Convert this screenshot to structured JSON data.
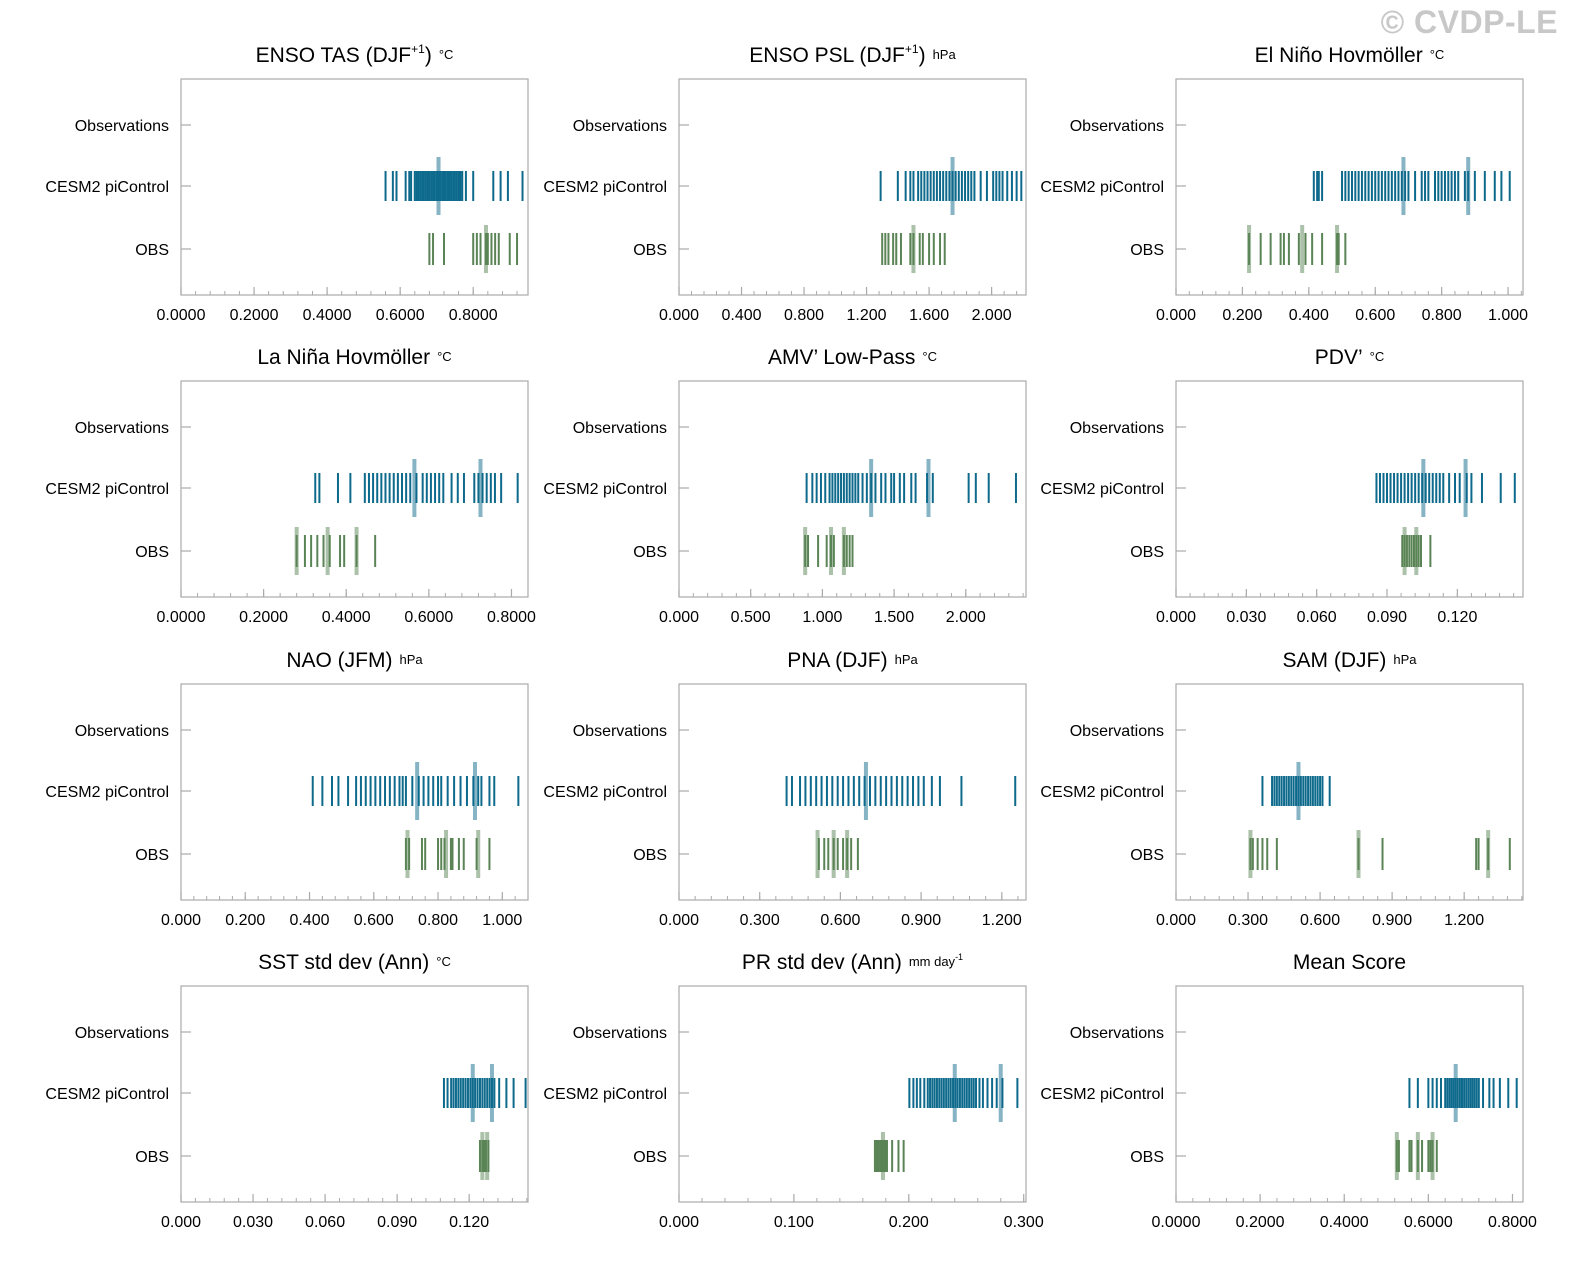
{
  "watermark": "© CVDP-LE",
  "colors": {
    "model": "#0e6a8c",
    "obs": "#5a8455",
    "frame": "#aaaaaa"
  },
  "row_labels": [
    "Observations",
    "CESM2 piControl",
    "OBS"
  ],
  "chart_data": [
    {
      "type": "scatter",
      "title": "ENSO TAS (DJF",
      "title_sup": "+1",
      "title_after": ")",
      "unit": "°C",
      "xlim": [
        0,
        0.95
      ],
      "xticks": [
        "0.0000",
        "0.2000",
        "0.4000",
        "0.6000",
        "0.8000"
      ],
      "xtick_values": [
        0,
        0.2,
        0.4,
        0.6,
        0.8
      ],
      "cesm_values": [
        0.56,
        0.58,
        0.59,
        0.615,
        0.625,
        0.63,
        0.64,
        0.645,
        0.65,
        0.655,
        0.66,
        0.665,
        0.67,
        0.675,
        0.68,
        0.685,
        0.69,
        0.695,
        0.7,
        0.705,
        0.71,
        0.715,
        0.72,
        0.725,
        0.73,
        0.735,
        0.74,
        0.745,
        0.75,
        0.755,
        0.76,
        0.765,
        0.77,
        0.78,
        0.8,
        0.855,
        0.875,
        0.895,
        0.935
      ],
      "cesm_highlight": [
        0.705
      ],
      "obs_values": [
        0.68,
        0.69,
        0.72,
        0.8,
        0.81,
        0.82,
        0.835,
        0.84,
        0.85,
        0.86,
        0.87,
        0.9,
        0.92
      ],
      "obs_highlight": [
        0.835
      ]
    },
    {
      "type": "scatter",
      "title": "ENSO PSL (DJF",
      "title_sup": "+1",
      "title_after": ")",
      "unit": "hPa",
      "xlim": [
        0,
        2.22
      ],
      "xticks": [
        "0.000",
        "0.400",
        "0.800",
        "1.200",
        "1.600",
        "2.000"
      ],
      "xtick_values": [
        0,
        0.4,
        0.8,
        1.2,
        1.6,
        2.0
      ],
      "cesm_values": [
        1.29,
        1.4,
        1.45,
        1.48,
        1.5,
        1.53,
        1.55,
        1.57,
        1.59,
        1.61,
        1.63,
        1.65,
        1.67,
        1.69,
        1.71,
        1.73,
        1.75,
        1.77,
        1.79,
        1.81,
        1.83,
        1.85,
        1.87,
        1.89,
        1.93,
        1.97,
        2.01,
        2.03,
        2.05,
        2.07,
        2.1,
        2.13,
        2.16,
        2.19
      ],
      "cesm_highlight": [
        1.75
      ],
      "obs_values": [
        1.3,
        1.32,
        1.34,
        1.37,
        1.39,
        1.42,
        1.48,
        1.5,
        1.54,
        1.56,
        1.6,
        1.63,
        1.67,
        1.7
      ],
      "obs_highlight": [
        1.5
      ]
    },
    {
      "type": "scatter",
      "title": "El Niño Hovmöller",
      "title_sup": "",
      "title_after": "",
      "unit": "°C",
      "xlim": [
        0,
        1.045
      ],
      "xticks": [
        "0.000",
        "0.200",
        "0.400",
        "0.600",
        "0.800",
        "1.000"
      ],
      "xtick_values": [
        0,
        0.2,
        0.4,
        0.6,
        0.8,
        1.0
      ],
      "cesm_values": [
        0.415,
        0.425,
        0.43,
        0.44,
        0.5,
        0.51,
        0.52,
        0.53,
        0.54,
        0.55,
        0.56,
        0.57,
        0.58,
        0.59,
        0.6,
        0.61,
        0.62,
        0.63,
        0.64,
        0.65,
        0.66,
        0.67,
        0.68,
        0.69,
        0.7,
        0.72,
        0.74,
        0.75,
        0.76,
        0.78,
        0.79,
        0.8,
        0.81,
        0.82,
        0.83,
        0.84,
        0.85,
        0.87,
        0.88,
        0.9,
        0.93,
        0.96,
        0.98,
        1.005
      ],
      "cesm_highlight": [
        0.685,
        0.88
      ],
      "obs_values": [
        0.22,
        0.255,
        0.285,
        0.315,
        0.325,
        0.34,
        0.37,
        0.39,
        0.41,
        0.44,
        0.485,
        0.49,
        0.51
      ],
      "obs_highlight": [
        0.22,
        0.38,
        0.485
      ]
    },
    {
      "type": "scatter",
      "title": "La Niña Hovmöller",
      "title_sup": "",
      "title_after": "",
      "unit": "°C",
      "xlim": [
        0,
        0.84
      ],
      "xticks": [
        "0.0000",
        "0.2000",
        "0.4000",
        "0.6000",
        "0.8000"
      ],
      "xtick_values": [
        0,
        0.2,
        0.4,
        0.6,
        0.8
      ],
      "cesm_values": [
        0.325,
        0.335,
        0.38,
        0.41,
        0.445,
        0.455,
        0.465,
        0.475,
        0.485,
        0.495,
        0.505,
        0.515,
        0.525,
        0.535,
        0.545,
        0.555,
        0.57,
        0.585,
        0.595,
        0.605,
        0.615,
        0.625,
        0.635,
        0.655,
        0.67,
        0.685,
        0.71,
        0.72,
        0.73,
        0.74,
        0.75,
        0.76,
        0.775,
        0.815
      ],
      "cesm_highlight": [
        0.565,
        0.725
      ],
      "obs_values": [
        0.28,
        0.3,
        0.315,
        0.33,
        0.345,
        0.36,
        0.385,
        0.395,
        0.425,
        0.47
      ],
      "obs_highlight": [
        0.28,
        0.355,
        0.425
      ]
    },
    {
      "type": "scatter",
      "title": "AMV’ Low-Pass",
      "title_sup": "",
      "title_after": "",
      "unit": "°C",
      "xlim": [
        0,
        2.42
      ],
      "xticks": [
        "0.000",
        "0.500",
        "1.000",
        "1.500",
        "2.000"
      ],
      "xtick_values": [
        0,
        0.5,
        1.0,
        1.5,
        2.0
      ],
      "cesm_values": [
        0.89,
        0.93,
        0.96,
        0.99,
        1.02,
        1.05,
        1.07,
        1.09,
        1.11,
        1.13,
        1.15,
        1.17,
        1.19,
        1.21,
        1.23,
        1.25,
        1.28,
        1.31,
        1.34,
        1.37,
        1.41,
        1.44,
        1.48,
        1.5,
        1.54,
        1.57,
        1.62,
        1.65,
        1.73,
        1.77,
        2.02,
        2.07,
        2.16,
        2.35
      ],
      "cesm_highlight": [
        1.34,
        1.74
      ],
      "obs_values": [
        0.88,
        0.9,
        0.97,
        1.03,
        1.06,
        1.08,
        1.15,
        1.17,
        1.19,
        1.21
      ],
      "obs_highlight": [
        0.88,
        1.06,
        1.15
      ]
    },
    {
      "type": "scatter",
      "title": "PDV’",
      "title_sup": "",
      "title_after": "",
      "unit": "°C",
      "xlim": [
        0,
        0.148
      ],
      "xticks": [
        "0.000",
        "0.030",
        "0.060",
        "0.090",
        "0.120"
      ],
      "xtick_values": [
        0,
        0.03,
        0.06,
        0.09,
        0.12
      ],
      "cesm_values": [
        0.0855,
        0.087,
        0.0885,
        0.09,
        0.0915,
        0.093,
        0.0945,
        0.096,
        0.0975,
        0.099,
        0.1005,
        0.102,
        0.1035,
        0.105,
        0.1065,
        0.108,
        0.1095,
        0.111,
        0.1125,
        0.114,
        0.1165,
        0.119,
        0.121,
        0.124,
        0.126,
        0.1305,
        0.1385,
        0.1445
      ],
      "cesm_highlight": [
        0.1055,
        0.1235
      ],
      "obs_values": [
        0.0965,
        0.0975,
        0.0985,
        0.0995,
        0.1005,
        0.1015,
        0.1025,
        0.1035,
        0.1045,
        0.1085
      ],
      "obs_highlight": [
        0.0975,
        0.1025
      ]
    },
    {
      "type": "scatter",
      "title": "NAO (JFM)",
      "title_sup": "",
      "title_after": "",
      "unit": "hPa",
      "xlim": [
        0,
        1.08
      ],
      "xticks": [
        "0.000",
        "0.200",
        "0.400",
        "0.600",
        "0.800",
        "1.000"
      ],
      "xtick_values": [
        0,
        0.2,
        0.4,
        0.6,
        0.8,
        1.0
      ],
      "cesm_values": [
        0.41,
        0.44,
        0.47,
        0.49,
        0.52,
        0.545,
        0.56,
        0.575,
        0.59,
        0.605,
        0.62,
        0.635,
        0.65,
        0.665,
        0.68,
        0.69,
        0.7,
        0.72,
        0.74,
        0.755,
        0.77,
        0.785,
        0.8,
        0.81,
        0.83,
        0.85,
        0.87,
        0.89,
        0.91,
        0.925,
        0.935,
        0.96,
        0.975,
        1.05
      ],
      "cesm_highlight": [
        0.735,
        0.915
      ],
      "obs_values": [
        0.7,
        0.71,
        0.75,
        0.76,
        0.8,
        0.81,
        0.82,
        0.84,
        0.845,
        0.865,
        0.88,
        0.92,
        0.96
      ],
      "obs_highlight": [
        0.705,
        0.825,
        0.925
      ]
    },
    {
      "type": "scatter",
      "title": "PNA (DJF)",
      "title_sup": "",
      "title_after": "",
      "unit": "hPa",
      "xlim": [
        0,
        1.29
      ],
      "xticks": [
        "0.000",
        "0.300",
        "0.600",
        "0.900",
        "1.200"
      ],
      "xtick_values": [
        0,
        0.3,
        0.6,
        0.9,
        1.2
      ],
      "cesm_values": [
        0.4,
        0.42,
        0.45,
        0.47,
        0.49,
        0.51,
        0.53,
        0.55,
        0.57,
        0.59,
        0.61,
        0.63,
        0.65,
        0.67,
        0.69,
        0.71,
        0.73,
        0.75,
        0.77,
        0.79,
        0.81,
        0.83,
        0.85,
        0.87,
        0.89,
        0.91,
        0.94,
        0.97,
        1.05,
        1.25
      ],
      "cesm_highlight": [
        0.695
      ],
      "obs_values": [
        0.52,
        0.54,
        0.555,
        0.575,
        0.59,
        0.61,
        0.625,
        0.64,
        0.665
      ],
      "obs_highlight": [
        0.515,
        0.575,
        0.625
      ]
    },
    {
      "type": "scatter",
      "title": "SAM (DJF)",
      "title_sup": "",
      "title_after": "",
      "unit": "hPa",
      "xlim": [
        0,
        1.445
      ],
      "xticks": [
        "0.000",
        "0.300",
        "0.600",
        "0.900",
        "1.200"
      ],
      "xtick_values": [
        0,
        0.3,
        0.6,
        0.9,
        1.2
      ],
      "cesm_values": [
        0.36,
        0.4,
        0.41,
        0.42,
        0.43,
        0.44,
        0.45,
        0.46,
        0.47,
        0.48,
        0.49,
        0.5,
        0.51,
        0.52,
        0.53,
        0.54,
        0.55,
        0.56,
        0.57,
        0.58,
        0.59,
        0.6,
        0.61,
        0.64
      ],
      "cesm_highlight": [
        0.51
      ],
      "obs_values": [
        0.31,
        0.32,
        0.34,
        0.36,
        0.38,
        0.42,
        0.76,
        0.86,
        1.25,
        1.26,
        1.3,
        1.39
      ],
      "obs_highlight": [
        0.31,
        0.76,
        1.3
      ]
    },
    {
      "type": "scatter",
      "title": "SST std dev (Ann)",
      "title_sup": "",
      "title_after": "",
      "unit": "°C",
      "xlim": [
        0,
        0.1445
      ],
      "xticks": [
        "0.000",
        "0.030",
        "0.060",
        "0.090",
        "0.120"
      ],
      "xtick_values": [
        0,
        0.03,
        0.06,
        0.09,
        0.12
      ],
      "cesm_values": [
        0.1095,
        0.111,
        0.1125,
        0.1135,
        0.1145,
        0.1155,
        0.1165,
        0.1175,
        0.1185,
        0.1195,
        0.1205,
        0.1215,
        0.1225,
        0.1235,
        0.1245,
        0.1255,
        0.1265,
        0.1275,
        0.1285,
        0.1295,
        0.1305,
        0.1325,
        0.1355,
        0.1385,
        0.1435
      ],
      "cesm_highlight": [
        0.1215,
        0.1295
      ],
      "obs_values": [
        0.1245,
        0.1255,
        0.126,
        0.1265,
        0.127,
        0.128
      ],
      "obs_highlight": [
        0.1255,
        0.1275
      ]
    },
    {
      "type": "scatter",
      "title": "PR std dev (Ann)",
      "title_sup": "",
      "title_after": "",
      "unit": "mm day",
      "unit_sup": "-1",
      "xlim": [
        0,
        0.302
      ],
      "xticks": [
        "0.000",
        "0.100",
        "0.200",
        "0.300"
      ],
      "xtick_values": [
        0,
        0.1,
        0.2,
        0.3
      ],
      "cesm_values": [
        0.2005,
        0.204,
        0.207,
        0.21,
        0.2135,
        0.2165,
        0.2185,
        0.2205,
        0.2225,
        0.2245,
        0.2265,
        0.2285,
        0.2305,
        0.2325,
        0.2345,
        0.2365,
        0.2385,
        0.2405,
        0.2425,
        0.2445,
        0.2465,
        0.2485,
        0.2505,
        0.2525,
        0.2545,
        0.2565,
        0.2585,
        0.2615,
        0.2645,
        0.2685,
        0.2725,
        0.2765,
        0.2815,
        0.2945
      ],
      "cesm_highlight": [
        0.24,
        0.28
      ],
      "obs_values": [
        0.1705,
        0.172,
        0.1735,
        0.175,
        0.1765,
        0.178,
        0.1795,
        0.181,
        0.1855,
        0.191,
        0.1955
      ],
      "obs_highlight": [
        0.1775
      ]
    },
    {
      "type": "scatter",
      "title": "Mean Score",
      "title_sup": "",
      "title_after": "",
      "unit": "",
      "xlim": [
        0,
        0.825
      ],
      "xticks": [
        "0.0000",
        "0.2000",
        "0.4000",
        "0.6000",
        "0.8000"
      ],
      "xtick_values": [
        0,
        0.2,
        0.4,
        0.6,
        0.8
      ],
      "cesm_values": [
        0.555,
        0.575,
        0.6,
        0.61,
        0.62,
        0.63,
        0.64,
        0.645,
        0.65,
        0.655,
        0.66,
        0.665,
        0.67,
        0.675,
        0.68,
        0.685,
        0.69,
        0.695,
        0.7,
        0.705,
        0.71,
        0.715,
        0.72,
        0.73,
        0.745,
        0.755,
        0.77,
        0.79,
        0.81
      ],
      "cesm_highlight": [
        0.665
      ],
      "obs_values": [
        0.525,
        0.53,
        0.555,
        0.56,
        0.575,
        0.585,
        0.6,
        0.605,
        0.61,
        0.62
      ],
      "obs_highlight": [
        0.525,
        0.575,
        0.61
      ]
    }
  ]
}
